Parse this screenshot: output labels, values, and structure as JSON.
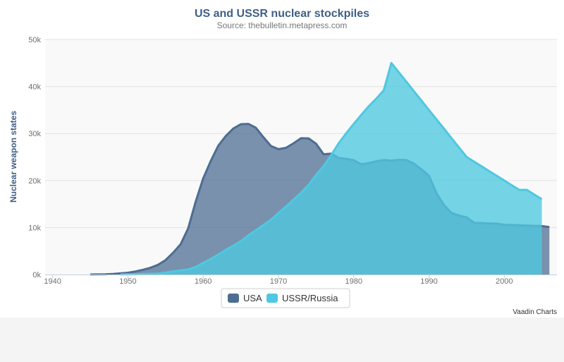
{
  "chart_data": {
    "type": "area",
    "title": "US and USSR nuclear stockpiles",
    "subtitle": "Source:  thebulletin.metapress.com",
    "xlabel": "",
    "ylabel": "Nuclear weapon states",
    "xlim": [
      1939,
      2007
    ],
    "ylim": [
      0,
      50000
    ],
    "x_ticks": [
      1940,
      1950,
      1960,
      1970,
      1980,
      1990,
      2000
    ],
    "x_tick_labels": [
      "1940",
      "1950",
      "1960",
      "1970",
      "1980",
      "1990",
      "2000"
    ],
    "y_ticks": [
      0,
      10000,
      20000,
      30000,
      40000,
      50000
    ],
    "y_tick_labels": [
      "0k",
      "10k",
      "20k",
      "30k",
      "40k",
      "50k"
    ],
    "grid": true,
    "legend_position": "bottom-center",
    "series": [
      {
        "name": "USA",
        "color": "#4d6d92",
        "fill_opacity": 0.75,
        "points": [
          [
            1945,
            6
          ],
          [
            1946,
            11
          ],
          [
            1947,
            32
          ],
          [
            1948,
            110
          ],
          [
            1949,
            235
          ],
          [
            1950,
            369
          ],
          [
            1951,
            640
          ],
          [
            1952,
            1005
          ],
          [
            1953,
            1436
          ],
          [
            1954,
            2063
          ],
          [
            1955,
            3057
          ],
          [
            1956,
            4618
          ],
          [
            1957,
            6444
          ],
          [
            1958,
            9822
          ],
          [
            1959,
            15468
          ],
          [
            1960,
            20434
          ],
          [
            1961,
            24126
          ],
          [
            1962,
            27387
          ],
          [
            1963,
            29459
          ],
          [
            1964,
            31056
          ],
          [
            1965,
            31982
          ],
          [
            1966,
            32040
          ],
          [
            1967,
            31233
          ],
          [
            1968,
            29224
          ],
          [
            1969,
            27342
          ],
          [
            1970,
            26662
          ],
          [
            1971,
            26956
          ],
          [
            1972,
            27912
          ],
          [
            1973,
            28999
          ],
          [
            1974,
            28965
          ],
          [
            1975,
            27826
          ],
          [
            1976,
            25579
          ],
          [
            1977,
            25722
          ],
          [
            1978,
            24826
          ],
          [
            1979,
            24605
          ],
          [
            1980,
            24304
          ],
          [
            1981,
            23464
          ],
          [
            1982,
            23708
          ],
          [
            1983,
            24099
          ],
          [
            1984,
            24357
          ],
          [
            1985,
            24237
          ],
          [
            1986,
            24401
          ],
          [
            1987,
            24344
          ],
          [
            1988,
            23586
          ],
          [
            1989,
            22380
          ],
          [
            1990,
            21004
          ],
          [
            1991,
            17287
          ],
          [
            1992,
            14747
          ],
          [
            1993,
            13076
          ],
          [
            1994,
            12555
          ],
          [
            1995,
            12144
          ],
          [
            1996,
            11009
          ],
          [
            1997,
            10950
          ],
          [
            1998,
            10871
          ],
          [
            1999,
            10824
          ],
          [
            2000,
            10577
          ],
          [
            2001,
            10527
          ],
          [
            2002,
            10475
          ],
          [
            2003,
            10421
          ],
          [
            2004,
            10358
          ],
          [
            2005,
            10295
          ],
          [
            2006,
            10104
          ]
        ]
      },
      {
        "name": "USSR/Russia",
        "color": "#4fc8e0",
        "fill_opacity": 0.78,
        "points": [
          [
            1949,
            5
          ],
          [
            1950,
            25
          ],
          [
            1951,
            50
          ],
          [
            1952,
            120
          ],
          [
            1953,
            150
          ],
          [
            1954,
            200
          ],
          [
            1955,
            426
          ],
          [
            1956,
            660
          ],
          [
            1957,
            869
          ],
          [
            1958,
            1060
          ],
          [
            1959,
            1605
          ],
          [
            1960,
            2471
          ],
          [
            1961,
            3322
          ],
          [
            1962,
            4238
          ],
          [
            1963,
            5221
          ],
          [
            1964,
            6129
          ],
          [
            1965,
            7089
          ],
          [
            1966,
            8339
          ],
          [
            1967,
            9399
          ],
          [
            1968,
            10538
          ],
          [
            1969,
            11643
          ],
          [
            1970,
            13092
          ],
          [
            1971,
            14478
          ],
          [
            1972,
            15915
          ],
          [
            1973,
            17385
          ],
          [
            1974,
            19055
          ],
          [
            1975,
            21205
          ],
          [
            1976,
            23044
          ],
          [
            1977,
            25393
          ],
          [
            1978,
            27935
          ],
          [
            1979,
            30062
          ],
          [
            1980,
            32049
          ],
          [
            1981,
            33952
          ],
          [
            1982,
            35804
          ],
          [
            1983,
            37431
          ],
          [
            1984,
            39197
          ],
          [
            1985,
            45000
          ],
          [
            1986,
            43000
          ],
          [
            1987,
            41000
          ],
          [
            1988,
            39000
          ],
          [
            1989,
            37000
          ],
          [
            1990,
            35000
          ],
          [
            1991,
            33000
          ],
          [
            1992,
            31000
          ],
          [
            1993,
            29000
          ],
          [
            1994,
            27000
          ],
          [
            1995,
            25000
          ],
          [
            1996,
            24000
          ],
          [
            1997,
            23000
          ],
          [
            1998,
            22000
          ],
          [
            1999,
            21000
          ],
          [
            2000,
            20000
          ],
          [
            2001,
            19000
          ],
          [
            2002,
            18000
          ],
          [
            2003,
            18000
          ],
          [
            2004,
            17000
          ],
          [
            2005,
            16000
          ]
        ]
      }
    ],
    "credit": "Vaadin Charts"
  }
}
